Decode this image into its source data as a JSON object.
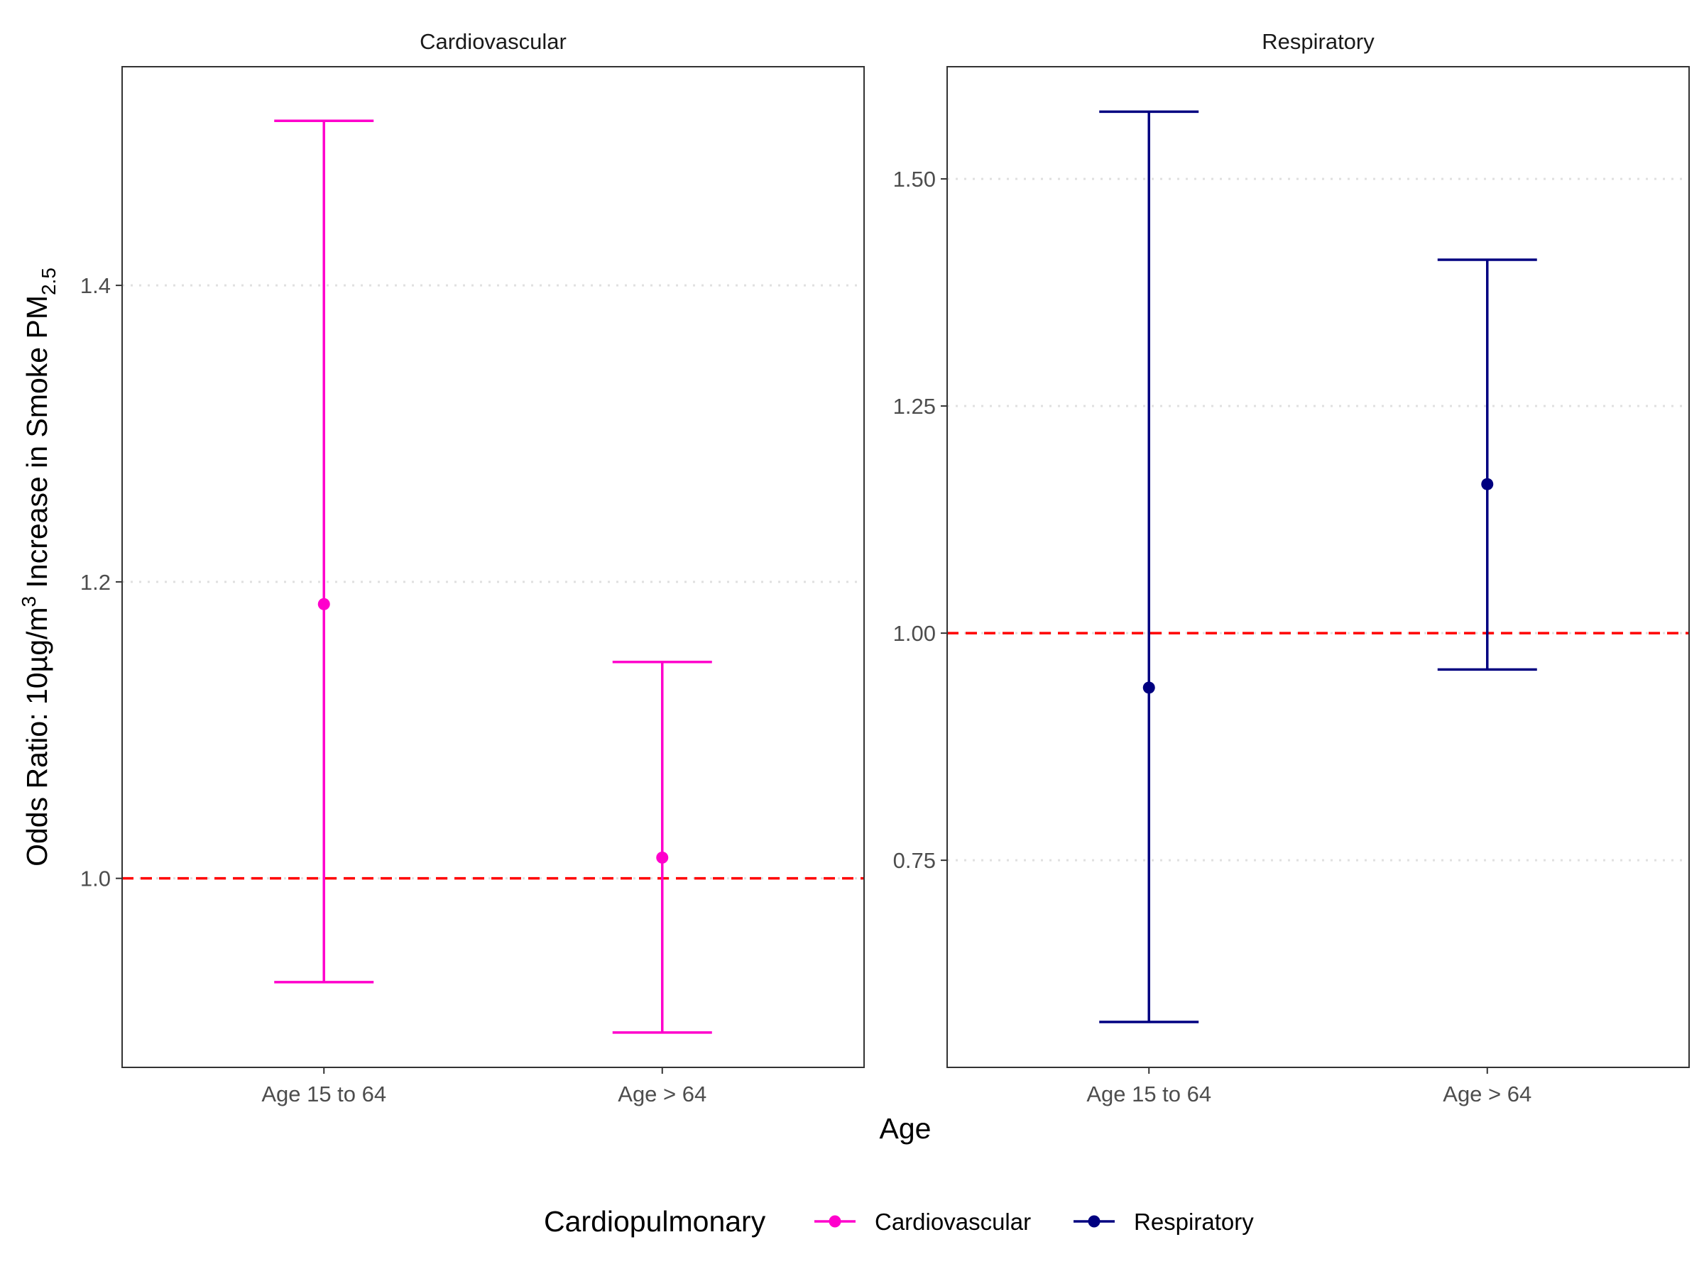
{
  "chart_data": {
    "type": "errorbar",
    "xlabel": "Age",
    "ylabel": {
      "text": "Odds Ratio: 10µg/m",
      "sup": "3",
      "rest": " Increase in Smoke PM",
      "sub": "2.5"
    },
    "categories": [
      "Age 15 to 64",
      "Age > 64"
    ],
    "reference_line": {
      "y": 1.0,
      "color": "#FF0000",
      "style": "dashed"
    },
    "grid": "major-y dotted",
    "legend": {
      "position": "bottom",
      "title": "Cardiopulmonary",
      "entries": [
        {
          "label": "Cardiovascular",
          "color": "#FF00CC"
        },
        {
          "label": "Respiratory",
          "color": "#000080"
        }
      ]
    },
    "panels": [
      {
        "strip": "Cardiovascular",
        "color": "#FF00CC",
        "ylim": [
          0.8725,
          1.5475
        ],
        "yticks": [
          1.0,
          1.2,
          1.4
        ],
        "ytick_labels": [
          "1.0",
          "1.2",
          "1.4"
        ],
        "points": [
          {
            "category": "Age 15 to 64",
            "estimate": 1.185,
            "lower": 0.93,
            "upper": 1.511
          },
          {
            "category": "Age > 64",
            "estimate": 1.014,
            "lower": 0.896,
            "upper": 1.146
          }
        ]
      },
      {
        "strip": "Respiratory",
        "color": "#000080",
        "ylim": [
          0.522,
          1.6235
        ],
        "yticks": [
          0.75,
          1.0,
          1.25,
          1.5
        ],
        "ytick_labels": [
          "0.75",
          "1.00",
          "1.25",
          "1.50"
        ],
        "points": [
          {
            "category": "Age 15 to 64",
            "estimate": 0.94,
            "lower": 0.572,
            "upper": 1.574
          },
          {
            "category": "Age > 64",
            "estimate": 1.164,
            "lower": 0.96,
            "upper": 1.411
          }
        ]
      }
    ]
  }
}
